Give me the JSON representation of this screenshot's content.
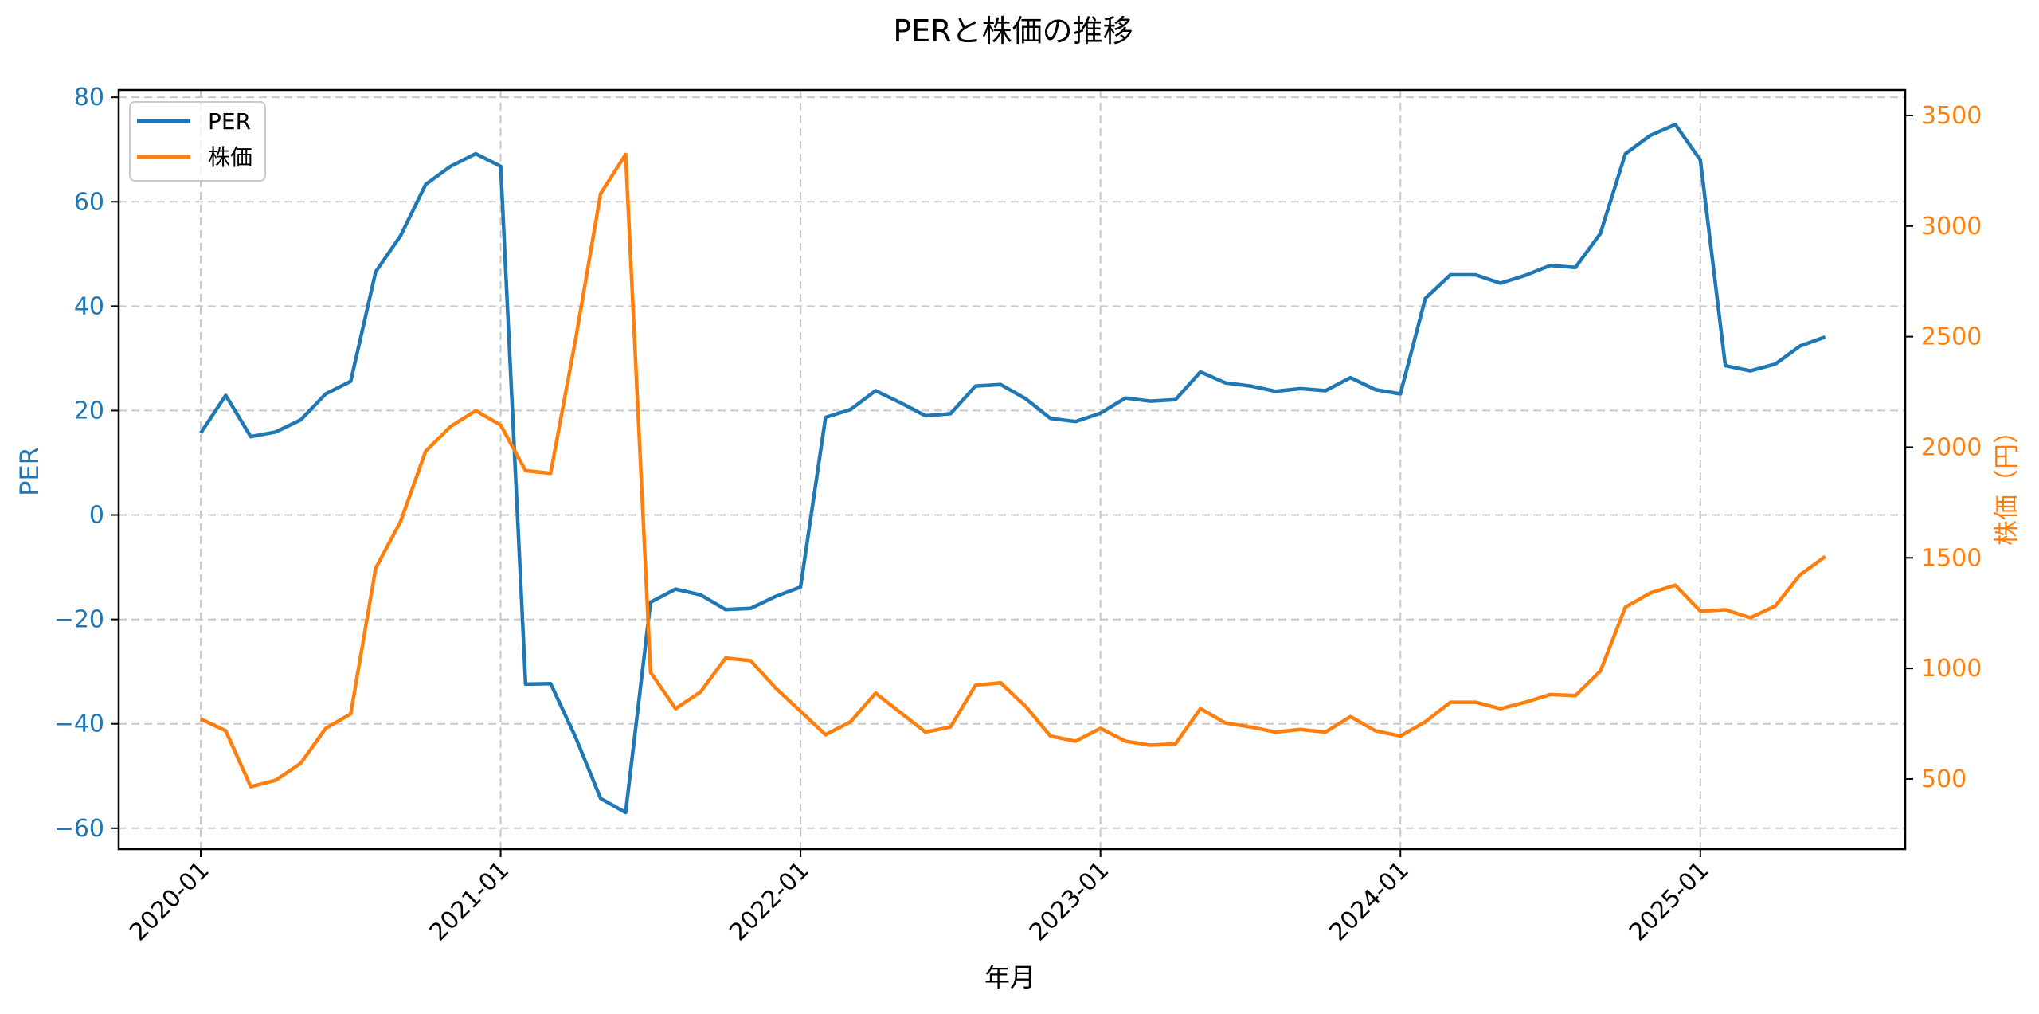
{
  "chart_data": {
    "type": "line",
    "title": "PERと株価の推移",
    "xlabel": "年月",
    "ylabel": "PER",
    "ylabel_right": "株価（円）",
    "x_tick_labels": [
      "2020-01",
      "2021-01",
      "2022-01",
      "2023-01",
      "2024-01",
      "2025-01"
    ],
    "y_ticks_left": [
      80,
      60,
      40,
      20,
      0,
      -20,
      -40,
      -60
    ],
    "y_ticks_right": [
      3500,
      3000,
      2500,
      2000,
      1500,
      1000,
      500
    ],
    "ylim_left": [
      -64,
      81.4
    ],
    "ylim_right": [
      183,
      3615
    ],
    "grid": true,
    "legend_position": "upper left",
    "x": [
      "2020-01",
      "2020-02",
      "2020-03",
      "2020-04",
      "2020-05",
      "2020-06",
      "2020-07",
      "2020-08",
      "2020-09",
      "2020-10",
      "2020-11",
      "2020-12",
      "2021-01",
      "2021-02",
      "2021-03",
      "2021-04",
      "2021-05",
      "2021-06",
      "2021-07",
      "2021-08",
      "2021-09",
      "2021-10",
      "2021-11",
      "2021-12",
      "2022-01",
      "2022-02",
      "2022-03",
      "2022-04",
      "2022-05",
      "2022-06",
      "2022-07",
      "2022-08",
      "2022-09",
      "2022-10",
      "2022-11",
      "2022-12",
      "2023-01",
      "2023-02",
      "2023-03",
      "2023-04",
      "2023-05",
      "2023-06",
      "2023-07",
      "2023-08",
      "2023-09",
      "2023-10",
      "2023-11",
      "2023-12",
      "2024-01",
      "2024-02",
      "2024-03",
      "2024-04",
      "2024-05",
      "2024-06",
      "2024-07",
      "2024-08",
      "2024-09",
      "2024-10",
      "2024-11",
      "2024-12",
      "2025-01",
      "2025-02",
      "2025-03",
      "2025-04",
      "2025-05",
      "2025-06"
    ],
    "series": [
      {
        "name": "PER",
        "axis": "left",
        "color": "#1f77b4",
        "values": [
          15.7,
          22.9,
          15.0,
          15.9,
          18.2,
          23.2,
          25.6,
          46.6,
          53.5,
          63.3,
          66.8,
          69.2,
          66.8,
          -32.4,
          -32.3,
          -42.6,
          -54.3,
          -57.0,
          -16.7,
          -14.2,
          -15.3,
          -18.1,
          -17.9,
          -15.6,
          -13.8,
          18.7,
          20.2,
          23.8,
          21.5,
          19.0,
          19.4,
          24.7,
          25.0,
          22.3,
          18.5,
          17.9,
          19.5,
          22.4,
          21.8,
          22.1,
          27.4,
          25.3,
          24.7,
          23.7,
          24.2,
          23.8,
          26.3,
          24.0,
          23.2,
          41.5,
          46.0,
          46.0,
          44.4,
          45.9,
          47.8,
          47.4,
          53.9,
          69.2,
          72.7,
          74.8,
          68.0,
          28.6,
          27.6,
          28.9,
          32.4,
          34.1
        ]
      },
      {
        "name": "株価",
        "axis": "right",
        "color": "#ff7f0e",
        "values": [
          771,
          718,
          465,
          494,
          571,
          729,
          794,
          1453,
          1665,
          1982,
          2094,
          2165,
          2100,
          1894,
          1882,
          2488,
          3147,
          3324,
          982,
          818,
          894,
          1047,
          1035,
          912,
          806,
          700,
          759,
          888,
          800,
          712,
          735,
          924,
          935,
          829,
          694,
          671,
          729,
          671,
          653,
          659,
          818,
          753,
          735,
          712,
          724,
          712,
          782,
          718,
          694,
          759,
          847,
          847,
          818,
          847,
          882,
          877,
          988,
          1277,
          1341,
          1376,
          1259,
          1265,
          1229,
          1282,
          1424,
          1506
        ]
      }
    ]
  },
  "legend": {
    "items": [
      {
        "label": "PER",
        "color": "#1f77b4"
      },
      {
        "label": "株価",
        "color": "#ff7f0e"
      }
    ]
  },
  "colors": {
    "left_axis": "#1f77b4",
    "right_axis": "#ff7f0e",
    "grid": "#c8c8c8",
    "spine": "#000000"
  }
}
